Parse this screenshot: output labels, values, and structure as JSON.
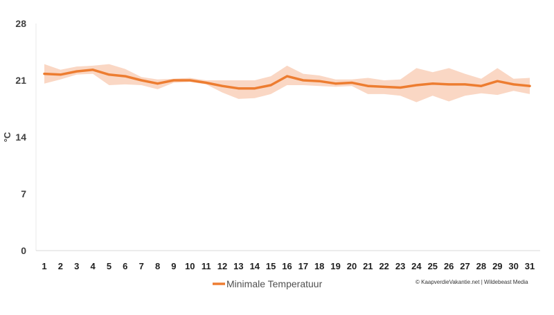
{
  "chart_data": {
    "type": "line",
    "title": "",
    "xlabel": "",
    "ylabel": "°C",
    "x": [
      1,
      2,
      3,
      4,
      5,
      6,
      7,
      8,
      9,
      10,
      11,
      12,
      13,
      14,
      15,
      16,
      17,
      18,
      19,
      20,
      21,
      22,
      23,
      24,
      25,
      26,
      27,
      28,
      29,
      30,
      31
    ],
    "xtick_labels": [
      "1",
      "2",
      "3",
      "4",
      "5",
      "6",
      "7",
      "8",
      "9",
      "10",
      "11",
      "12",
      "13",
      "14",
      "15",
      "16",
      "17",
      "18",
      "19",
      "20",
      "21",
      "22",
      "23",
      "24",
      "25",
      "26",
      "27",
      "28",
      "29",
      "30",
      "31"
    ],
    "ylim": [
      0,
      28
    ],
    "yticks": [
      0,
      7,
      14,
      21,
      28
    ],
    "ytick_labels": [
      "0",
      "7",
      "14",
      "21",
      "28"
    ],
    "grid": false,
    "legend_position": "bottom",
    "series": [
      {
        "name": "Minimale Temperatuur",
        "color": "#ED7D31",
        "values": [
          21.8,
          21.7,
          22.1,
          22.3,
          21.7,
          21.5,
          21.0,
          20.6,
          21.0,
          21.0,
          20.7,
          20.3,
          20.0,
          20.0,
          20.4,
          21.5,
          21.0,
          20.9,
          20.6,
          20.7,
          20.3,
          20.2,
          20.1,
          20.4,
          20.6,
          20.5,
          20.5,
          20.3,
          20.9,
          20.5,
          20.3
        ],
        "band_upper": [
          23.0,
          22.3,
          22.7,
          22.8,
          23.0,
          22.4,
          21.4,
          21.1,
          21.2,
          21.3,
          21.0,
          21.0,
          21.0,
          21.0,
          21.5,
          22.8,
          21.8,
          21.6,
          21.1,
          21.1,
          21.3,
          21.0,
          21.1,
          22.5,
          22.0,
          22.5,
          21.8,
          21.2,
          22.5,
          21.2,
          21.3
        ],
        "band_lower": [
          20.6,
          21.1,
          21.7,
          21.8,
          20.4,
          20.5,
          20.4,
          19.9,
          20.7,
          20.8,
          20.5,
          19.5,
          18.7,
          18.8,
          19.3,
          20.4,
          20.4,
          20.3,
          20.2,
          20.3,
          19.3,
          19.3,
          19.1,
          18.3,
          19.1,
          18.4,
          19.1,
          19.4,
          19.2,
          19.7,
          19.3
        ]
      }
    ]
  },
  "legend": {
    "label": "Minimale Temperatuur",
    "color": "#ED7D31"
  },
  "credit": "© KaapverdieVakantie.net | Wildebeast Media",
  "colors": {
    "line": "#ED7D31",
    "band": "#FAD7C4",
    "axis": "#D9D9D9"
  }
}
